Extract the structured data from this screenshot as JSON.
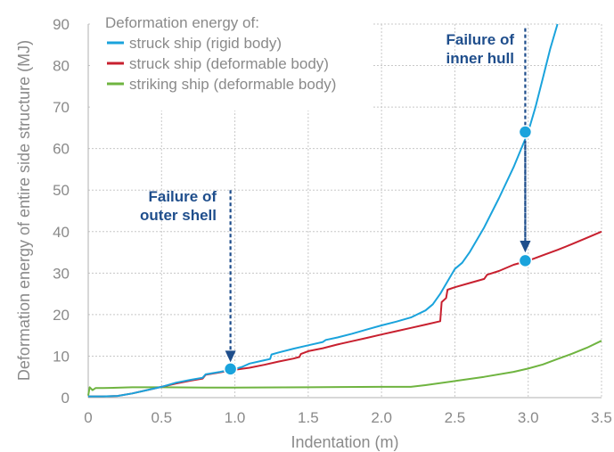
{
  "chart_data": {
    "type": "line",
    "xlabel": "Indentation (m)",
    "ylabel": "Deformation energy of entire side structure (MJ)",
    "xlim": [
      0,
      3.5
    ],
    "ylim": [
      0,
      90
    ],
    "xticks": [
      0,
      0.5,
      1.0,
      1.5,
      2.0,
      2.5,
      3.0,
      3.5
    ],
    "xtick_labels": [
      "0",
      "0.5",
      "1.0",
      "1.5",
      "2.0",
      "2.5",
      "3.0",
      "3.5"
    ],
    "yticks": [
      0,
      10,
      20,
      30,
      40,
      50,
      60,
      70,
      80,
      90
    ],
    "ytick_labels": [
      "0",
      "10",
      "20",
      "30",
      "40",
      "50",
      "60",
      "70",
      "80",
      "90"
    ],
    "grid": "dotted",
    "legend_title": "Deformation energy of:",
    "legend_position": "top-left",
    "series": [
      {
        "name": "struck ship (rigid body)",
        "color": "#1aa3dc",
        "points": [
          [
            0,
            0.3
          ],
          [
            0.1,
            0.3
          ],
          [
            0.2,
            0.4
          ],
          [
            0.3,
            1
          ],
          [
            0.4,
            1.8
          ],
          [
            0.5,
            2.6
          ],
          [
            0.6,
            3.6
          ],
          [
            0.7,
            4.3
          ],
          [
            0.78,
            4.8
          ],
          [
            0.8,
            5.6
          ],
          [
            0.9,
            6.2
          ],
          [
            1.0,
            6.9
          ],
          [
            1.05,
            7.4
          ],
          [
            1.1,
            8.2
          ],
          [
            1.2,
            9.0
          ],
          [
            1.24,
            9.3
          ],
          [
            1.25,
            10.4
          ],
          [
            1.3,
            10.9
          ],
          [
            1.4,
            11.8
          ],
          [
            1.5,
            12.6
          ],
          [
            1.6,
            13.4
          ],
          [
            1.62,
            13.9
          ],
          [
            1.7,
            14.5
          ],
          [
            1.8,
            15.4
          ],
          [
            1.9,
            16.4
          ],
          [
            2.0,
            17.4
          ],
          [
            2.1,
            18.3
          ],
          [
            2.2,
            19.3
          ],
          [
            2.3,
            21
          ],
          [
            2.35,
            22.5
          ],
          [
            2.4,
            25
          ],
          [
            2.45,
            28
          ],
          [
            2.5,
            31
          ],
          [
            2.55,
            32.5
          ],
          [
            2.6,
            35
          ],
          [
            2.7,
            41
          ],
          [
            2.8,
            48
          ],
          [
            2.9,
            55.5
          ],
          [
            3.0,
            64
          ],
          [
            3.05,
            70
          ],
          [
            3.1,
            77
          ],
          [
            3.15,
            84
          ],
          [
            3.2,
            90
          ]
        ]
      },
      {
        "name": "struck ship (deformable body)",
        "color": "#c8202f",
        "points": [
          [
            0,
            0.3
          ],
          [
            0.1,
            0.3
          ],
          [
            0.2,
            0.4
          ],
          [
            0.3,
            1
          ],
          [
            0.4,
            1.8
          ],
          [
            0.5,
            2.6
          ],
          [
            0.6,
            3.4
          ],
          [
            0.7,
            4.1
          ],
          [
            0.78,
            4.6
          ],
          [
            0.8,
            5.5
          ],
          [
            0.9,
            6.1
          ],
          [
            1.0,
            6.7
          ],
          [
            1.1,
            7.2
          ],
          [
            1.2,
            7.9
          ],
          [
            1.3,
            8.7
          ],
          [
            1.4,
            9.4
          ],
          [
            1.44,
            9.8
          ],
          [
            1.45,
            10.5
          ],
          [
            1.5,
            11.2
          ],
          [
            1.6,
            11.9
          ],
          [
            1.7,
            12.8
          ],
          [
            1.8,
            13.6
          ],
          [
            1.9,
            14.4
          ],
          [
            2.0,
            15.2
          ],
          [
            2.1,
            16.0
          ],
          [
            2.2,
            16.8
          ],
          [
            2.3,
            17.6
          ],
          [
            2.4,
            18.4
          ],
          [
            2.41,
            23
          ],
          [
            2.44,
            24
          ],
          [
            2.45,
            26
          ],
          [
            2.5,
            26.6
          ],
          [
            2.6,
            27.6
          ],
          [
            2.7,
            28.6
          ],
          [
            2.72,
            29.6
          ],
          [
            2.8,
            30.5
          ],
          [
            2.9,
            32
          ],
          [
            3.0,
            33
          ],
          [
            3.1,
            34.3
          ],
          [
            3.2,
            35.6
          ],
          [
            3.3,
            37
          ],
          [
            3.4,
            38.5
          ],
          [
            3.5,
            40
          ]
        ]
      },
      {
        "name": "striking ship (deformable body)",
        "color": "#6fb440",
        "points": [
          [
            0,
            0.5
          ],
          [
            0.01,
            2.5
          ],
          [
            0.03,
            1.8
          ],
          [
            0.05,
            2.3
          ],
          [
            0.1,
            2.3
          ],
          [
            0.3,
            2.5
          ],
          [
            0.5,
            2.5
          ],
          [
            0.8,
            2.4
          ],
          [
            1.0,
            2.4
          ],
          [
            1.5,
            2.5
          ],
          [
            2.0,
            2.6
          ],
          [
            2.2,
            2.6
          ],
          [
            2.3,
            3.0
          ],
          [
            2.5,
            4.0
          ],
          [
            2.7,
            5.0
          ],
          [
            2.9,
            6.2
          ],
          [
            3.0,
            7.0
          ],
          [
            3.1,
            8.0
          ],
          [
            3.2,
            9.3
          ],
          [
            3.3,
            10.6
          ],
          [
            3.4,
            12.0
          ],
          [
            3.5,
            13.7
          ]
        ]
      }
    ],
    "markers": [
      {
        "x": 0.97,
        "y": 6.9,
        "color": "#1aa3dc"
      },
      {
        "x": 2.98,
        "y": 64,
        "color": "#1aa3dc"
      },
      {
        "x": 2.98,
        "y": 33,
        "color": "#1aa3dc"
      }
    ],
    "annotations": [
      {
        "lines": [
          "Failure of",
          "outer shell"
        ],
        "x": 0.97,
        "arrow_from_y": 50,
        "arrow_to_y": 8.5
      },
      {
        "lines": [
          "Failure of",
          "inner hull"
        ],
        "x": 2.98,
        "arrow_from_y": 89,
        "arrow_to_y": 35
      }
    ]
  }
}
